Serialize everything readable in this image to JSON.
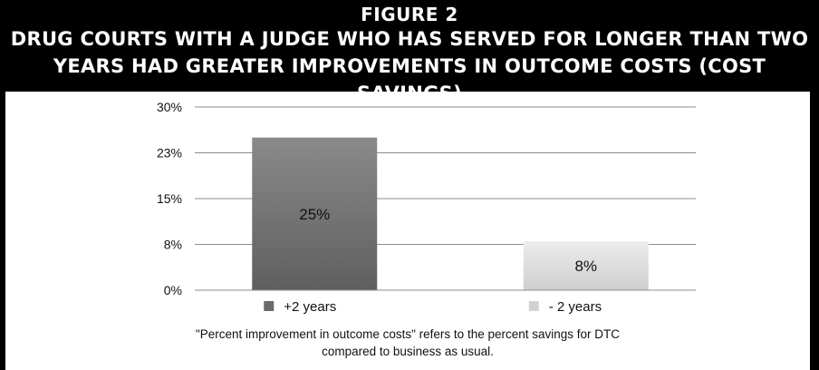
{
  "header": {
    "figure_label": "FIGURE 2",
    "title": "DRUG COURTS WITH A JUDGE WHO HAS SERVED FOR LONGER THAN TWO YEARS HAD GREATER IMPROVEMENTS IN OUTCOME COSTS (COST SAVINGS)"
  },
  "chart_data": {
    "type": "bar",
    "categories": [
      "+2 years",
      "- 2 years"
    ],
    "values": [
      25,
      8
    ],
    "data_labels": [
      "25%",
      "8%"
    ],
    "y_ticks": [
      "30%",
      "23%",
      "15%",
      "8%",
      "0%"
    ],
    "ylim": [
      0,
      30
    ],
    "grid": true,
    "legend_placement": "bottom",
    "legend": [
      "+2 years",
      "- 2 years"
    ],
    "colors": {
      "bar_1": "#737373",
      "bar_2": "#dcdcdc",
      "legend_1": "#6a6a6a",
      "legend_2": "#d2d2d2"
    }
  },
  "footnote": {
    "line1": "\"Percent improvement in outcome costs\" refers to the percent savings for DTC",
    "line2": "compared to business as usual."
  }
}
